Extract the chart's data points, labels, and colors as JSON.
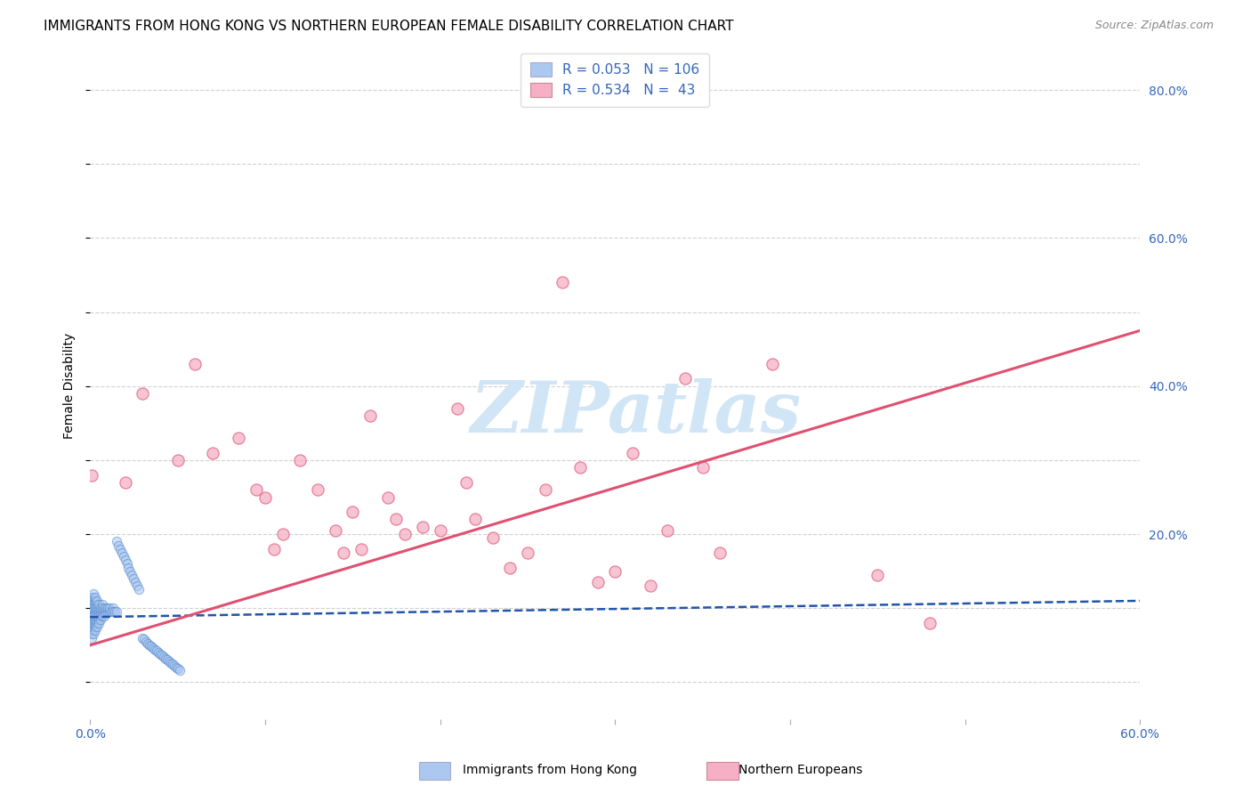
{
  "title": "IMMIGRANTS FROM HONG KONG VS NORTHERN EUROPEAN FEMALE DISABILITY CORRELATION CHART",
  "source": "Source: ZipAtlas.com",
  "ylabel": "Female Disability",
  "x_min": 0.0,
  "x_max": 0.6,
  "y_min": -0.05,
  "y_max": 0.85,
  "hk_color": "#aac8f0",
  "hk_edge_color": "#5588cc",
  "ne_color": "#f5b0c5",
  "ne_edge_color": "#e06080",
  "hk_line_color": "#2255aa",
  "ne_line_color": "#e05070",
  "background_color": "#ffffff",
  "grid_color": "#cccccc",
  "watermark_text": "ZIPatlas",
  "watermark_color": "#d0e5f5",
  "hk_scatter_x": [
    0.001,
    0.001,
    0.001,
    0.001,
    0.001,
    0.001,
    0.001,
    0.001,
    0.001,
    0.001,
    0.001,
    0.001,
    0.002,
    0.002,
    0.002,
    0.002,
    0.002,
    0.002,
    0.002,
    0.002,
    0.002,
    0.002,
    0.002,
    0.002,
    0.003,
    0.003,
    0.003,
    0.003,
    0.003,
    0.003,
    0.003,
    0.003,
    0.003,
    0.003,
    0.004,
    0.004,
    0.004,
    0.004,
    0.004,
    0.004,
    0.004,
    0.004,
    0.005,
    0.005,
    0.005,
    0.005,
    0.005,
    0.005,
    0.006,
    0.006,
    0.006,
    0.006,
    0.007,
    0.007,
    0.007,
    0.007,
    0.008,
    0.008,
    0.008,
    0.009,
    0.009,
    0.01,
    0.01,
    0.011,
    0.011,
    0.012,
    0.013,
    0.013,
    0.014,
    0.015,
    0.015,
    0.016,
    0.017,
    0.018,
    0.019,
    0.02,
    0.021,
    0.022,
    0.023,
    0.024,
    0.025,
    0.026,
    0.027,
    0.028,
    0.03,
    0.031,
    0.032,
    0.033,
    0.034,
    0.035,
    0.036,
    0.037,
    0.038,
    0.039,
    0.04,
    0.041,
    0.042,
    0.043,
    0.044,
    0.045,
    0.046,
    0.047,
    0.048,
    0.049,
    0.05,
    0.051
  ],
  "hk_scatter_y": [
    0.09,
    0.095,
    0.1,
    0.105,
    0.085,
    0.08,
    0.075,
    0.11,
    0.07,
    0.065,
    0.115,
    0.06,
    0.095,
    0.1,
    0.09,
    0.085,
    0.105,
    0.11,
    0.08,
    0.075,
    0.115,
    0.07,
    0.065,
    0.12,
    0.095,
    0.1,
    0.09,
    0.085,
    0.105,
    0.08,
    0.075,
    0.11,
    0.07,
    0.115,
    0.095,
    0.1,
    0.09,
    0.085,
    0.105,
    0.08,
    0.075,
    0.11,
    0.095,
    0.1,
    0.09,
    0.085,
    0.105,
    0.08,
    0.095,
    0.1,
    0.09,
    0.085,
    0.095,
    0.1,
    0.09,
    0.105,
    0.095,
    0.1,
    0.09,
    0.095,
    0.1,
    0.095,
    0.1,
    0.095,
    0.1,
    0.095,
    0.1,
    0.095,
    0.095,
    0.095,
    0.19,
    0.185,
    0.18,
    0.175,
    0.17,
    0.165,
    0.16,
    0.155,
    0.15,
    0.145,
    0.14,
    0.135,
    0.13,
    0.125,
    0.06,
    0.058,
    0.055,
    0.052,
    0.05,
    0.048,
    0.046,
    0.044,
    0.042,
    0.04,
    0.038,
    0.036,
    0.034,
    0.032,
    0.03,
    0.028,
    0.026,
    0.024,
    0.022,
    0.02,
    0.018,
    0.016
  ],
  "ne_scatter_x": [
    0.001,
    0.02,
    0.03,
    0.05,
    0.06,
    0.07,
    0.085,
    0.095,
    0.1,
    0.105,
    0.11,
    0.12,
    0.13,
    0.14,
    0.145,
    0.15,
    0.155,
    0.16,
    0.17,
    0.175,
    0.18,
    0.19,
    0.2,
    0.21,
    0.215,
    0.22,
    0.23,
    0.24,
    0.25,
    0.26,
    0.27,
    0.28,
    0.29,
    0.3,
    0.31,
    0.32,
    0.33,
    0.34,
    0.35,
    0.36,
    0.39,
    0.45,
    0.48
  ],
  "ne_scatter_y": [
    0.28,
    0.27,
    0.39,
    0.3,
    0.43,
    0.31,
    0.33,
    0.26,
    0.25,
    0.18,
    0.2,
    0.3,
    0.26,
    0.205,
    0.175,
    0.23,
    0.18,
    0.36,
    0.25,
    0.22,
    0.2,
    0.21,
    0.205,
    0.37,
    0.27,
    0.22,
    0.195,
    0.155,
    0.175,
    0.26,
    0.54,
    0.29,
    0.135,
    0.15,
    0.31,
    0.13,
    0.205,
    0.41,
    0.29,
    0.175,
    0.43,
    0.145,
    0.08
  ],
  "hk_line_x": [
    0.0,
    0.6
  ],
  "hk_line_y": [
    0.088,
    0.11
  ],
  "ne_line_x": [
    0.0,
    0.6
  ],
  "ne_line_y": [
    0.05,
    0.475
  ],
  "legend_hk_label": "R = 0.053   N = 106",
  "legend_ne_label": "R = 0.534   N =  43",
  "bottom_legend_hk": "Immigrants from Hong Kong",
  "bottom_legend_ne": "Northern Europeans"
}
